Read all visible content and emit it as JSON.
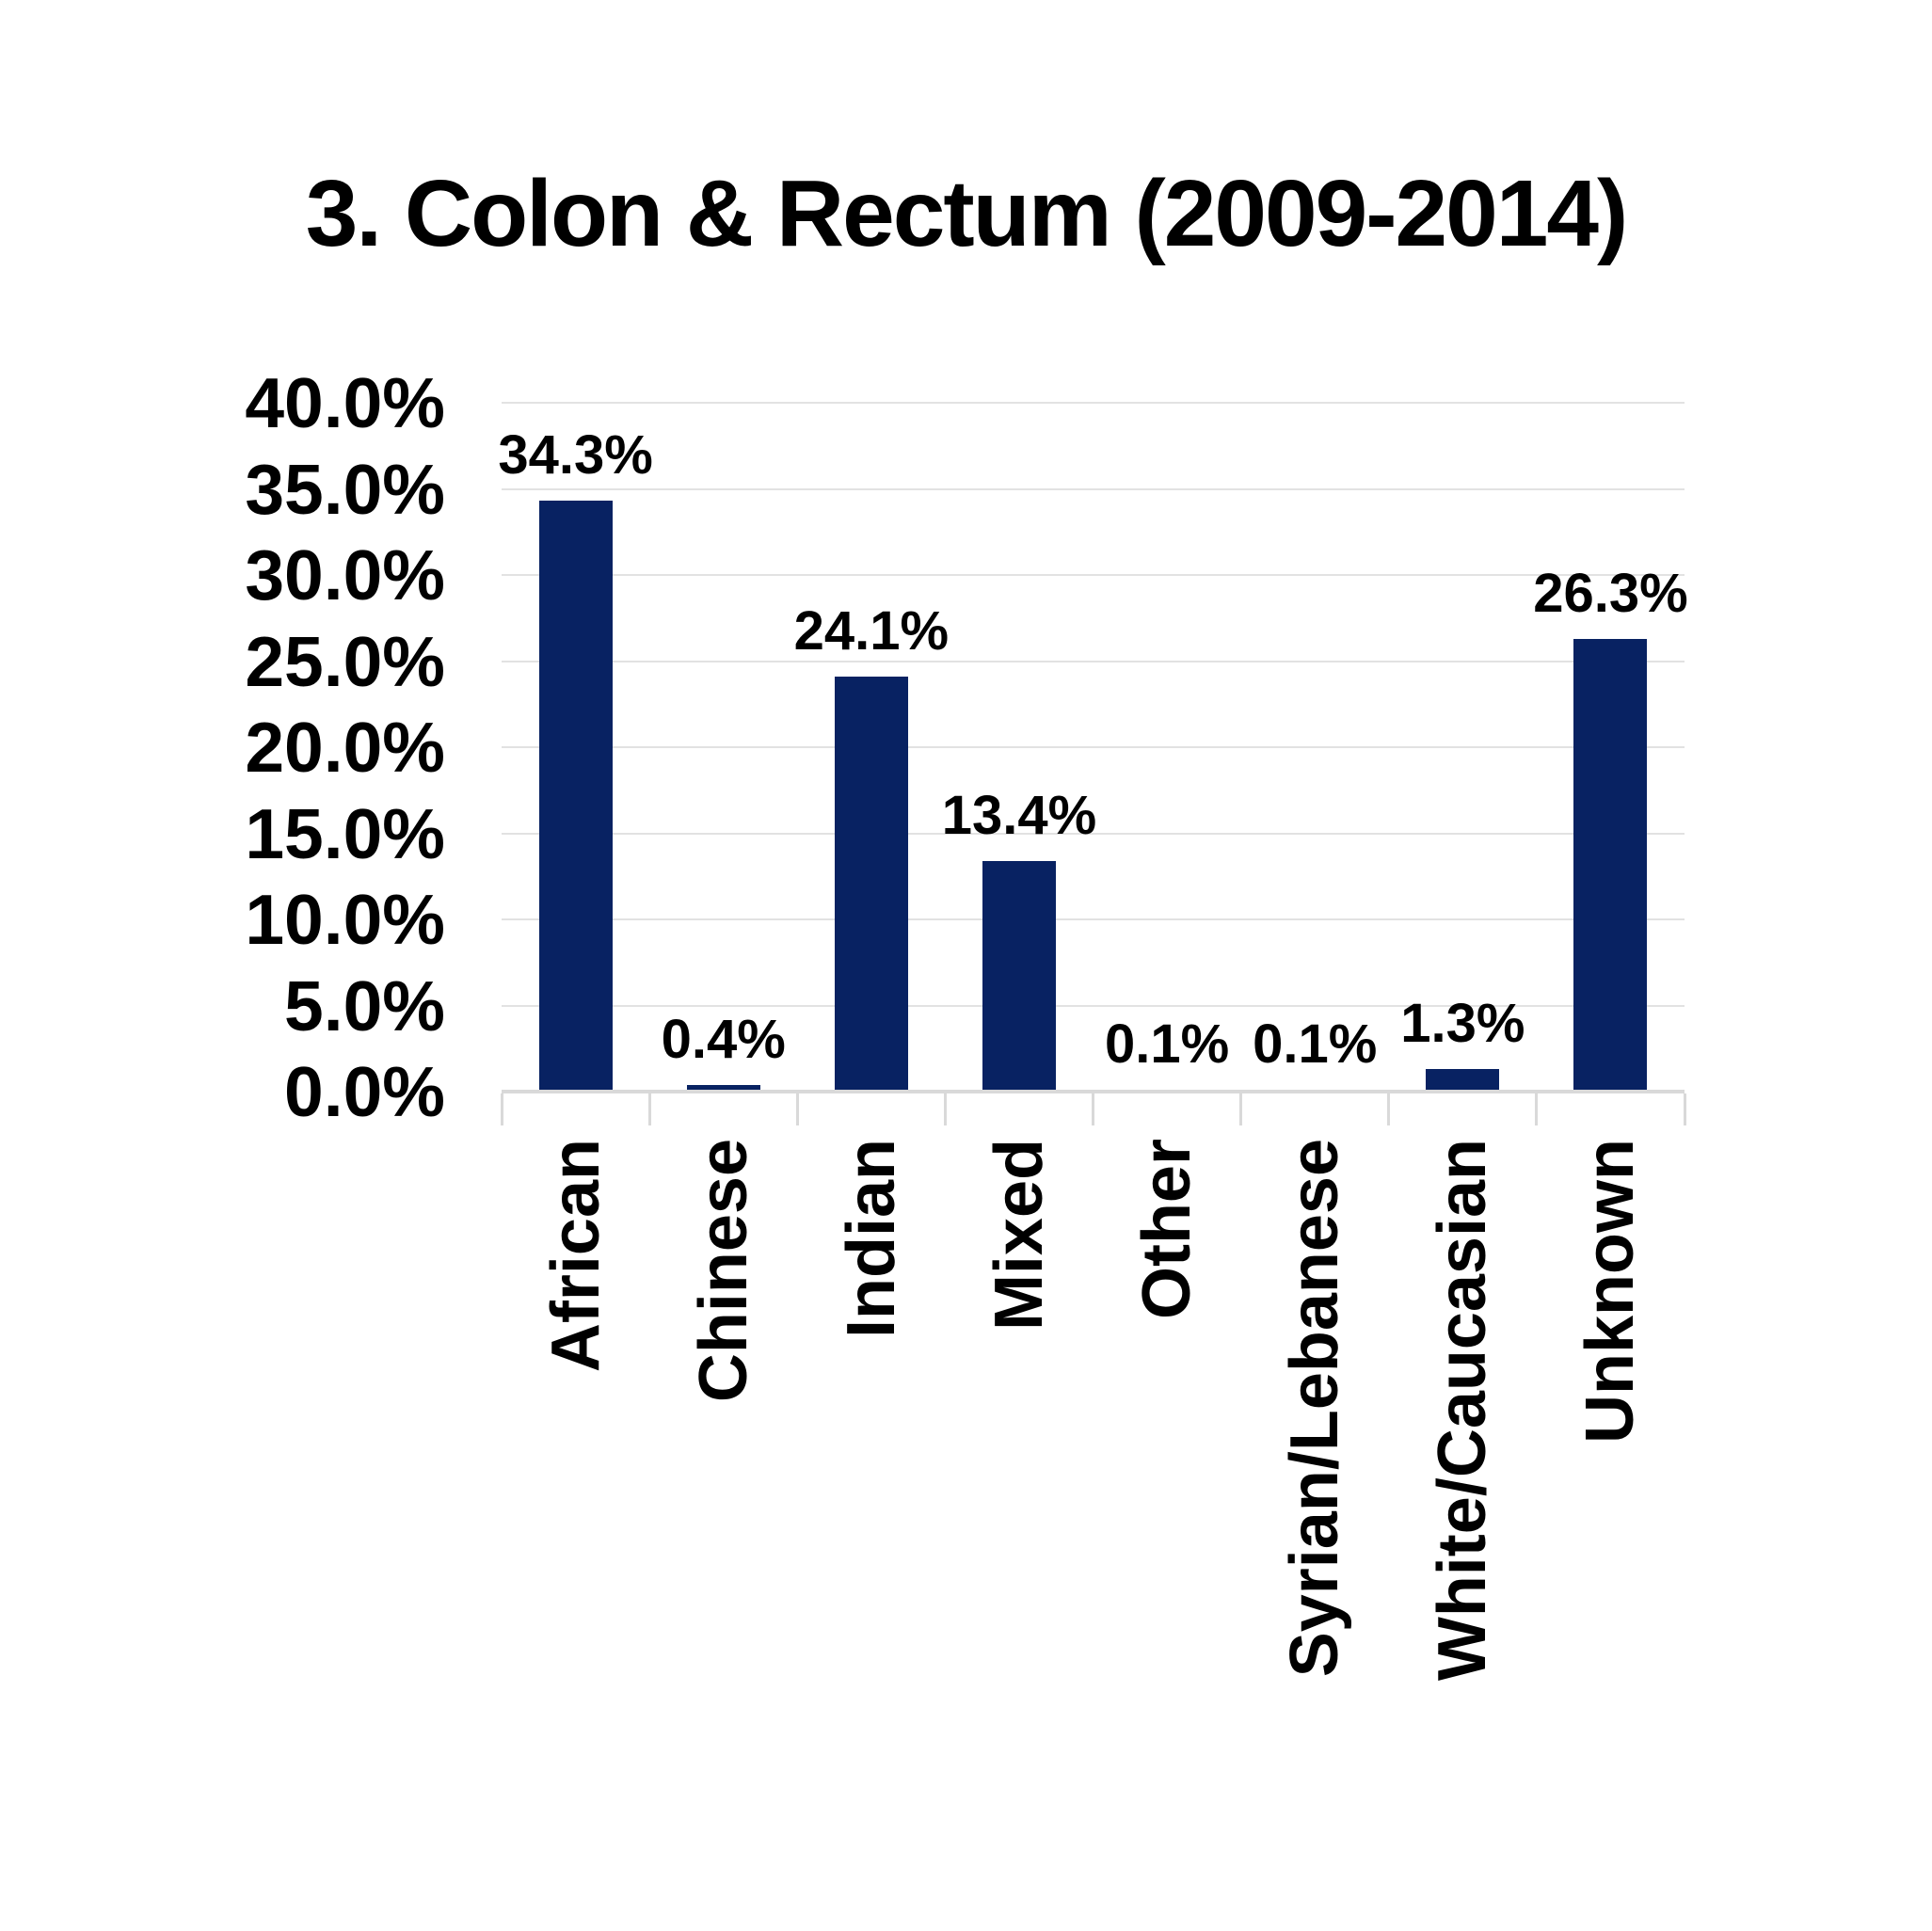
{
  "page": {
    "background": "#ffffff"
  },
  "chart_data": {
    "type": "bar",
    "title": "3. Colon & Rectum (2009-2014)",
    "categories": [
      "African",
      "Chinese",
      "Indian",
      "Mixed",
      "Other",
      "Syrian/Lebanese",
      "White/Caucasian",
      "Unknown"
    ],
    "values": [
      34.3,
      0.4,
      24.1,
      13.4,
      0.1,
      0.1,
      1.3,
      26.3
    ],
    "data_labels": [
      "34.3%",
      "0.4%",
      "24.1%",
      "13.4%",
      "0.1%",
      "0.1%",
      "1.3%",
      "26.3%"
    ],
    "y_ticks": [
      {
        "label": "40.0%",
        "value": 40
      },
      {
        "label": "35.0%",
        "value": 35
      },
      {
        "label": "30.0%",
        "value": 30
      },
      {
        "label": "25.0%",
        "value": 25
      },
      {
        "label": "20.0%",
        "value": 20
      },
      {
        "label": "15.0%",
        "value": 15
      },
      {
        "label": "10.0%",
        "value": 10
      },
      {
        "label": "5.0%",
        "value": 5
      },
      {
        "label": "0.0%",
        "value": 0
      }
    ],
    "xlabel": "",
    "ylabel": "",
    "ylim": [
      0,
      40
    ],
    "grid": "horizontal",
    "legend": "none",
    "bar_color": "#082262",
    "gridline_color": "#e2e2e2",
    "axis_color": "#d9d9d9",
    "text_color": "#000000"
  }
}
